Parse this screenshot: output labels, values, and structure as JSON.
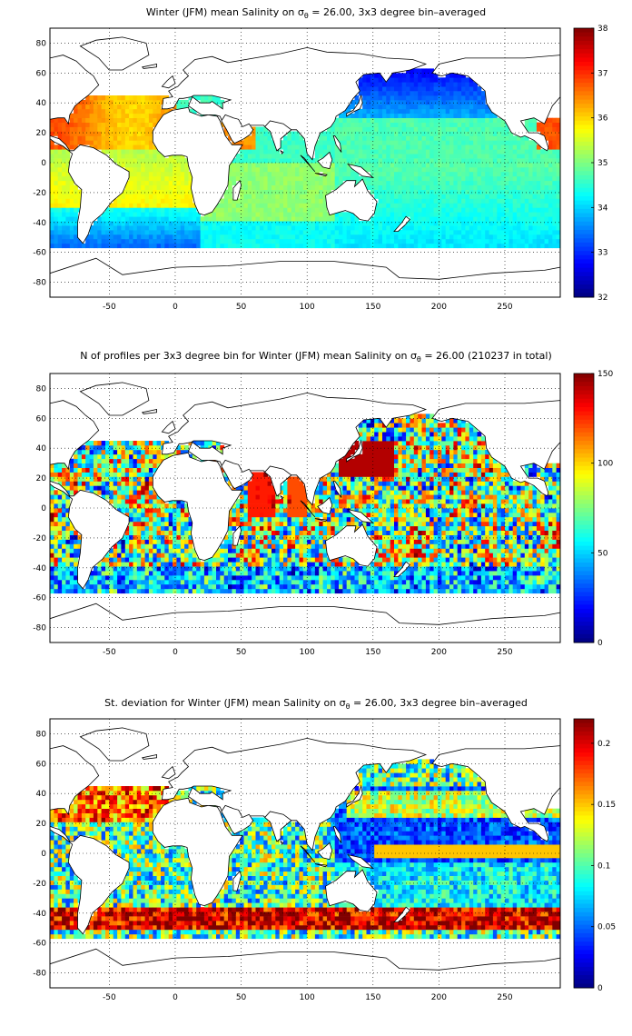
{
  "panels": [
    {
      "title_prefix": "Winter (JFM) mean Salinity on ",
      "sigma": "σ",
      "sigma_sub": "θ",
      "title_suffix": " = 26.00, 3x3 degree bin–averaged",
      "colorbar_ticks": [
        "38",
        "37",
        "36",
        "35",
        "34",
        "33",
        "32"
      ]
    },
    {
      "title_prefix": "N of profiles per 3x3 degree bin for Winter (JFM) mean Salinity on ",
      "sigma": "σ",
      "sigma_sub": "θ",
      "title_suffix": " = 26.00 (210237 in total)",
      "colorbar_ticks": [
        "150",
        "100",
        "50",
        "0"
      ]
    },
    {
      "title_prefix": "St. deviation for Winter (JFM) mean Salinity on ",
      "sigma": "σ",
      "sigma_sub": "θ",
      "title_suffix": " = 26.00, 3x3 degree bin–averaged",
      "colorbar_ticks": [
        "0.2",
        "0.15",
        "0.1",
        "0.05",
        "0"
      ]
    }
  ],
  "x_ticks": [
    "-50",
    "0",
    "50",
    "100",
    "150",
    "200",
    "250"
  ],
  "y_ticks": [
    "80",
    "60",
    "40",
    "20",
    "0",
    "-20",
    "-40",
    "-60",
    "-80"
  ],
  "colormap": "jet",
  "colors": {
    "land": "#ffffff",
    "coast": "#000000",
    "grid": "#000000"
  }
}
